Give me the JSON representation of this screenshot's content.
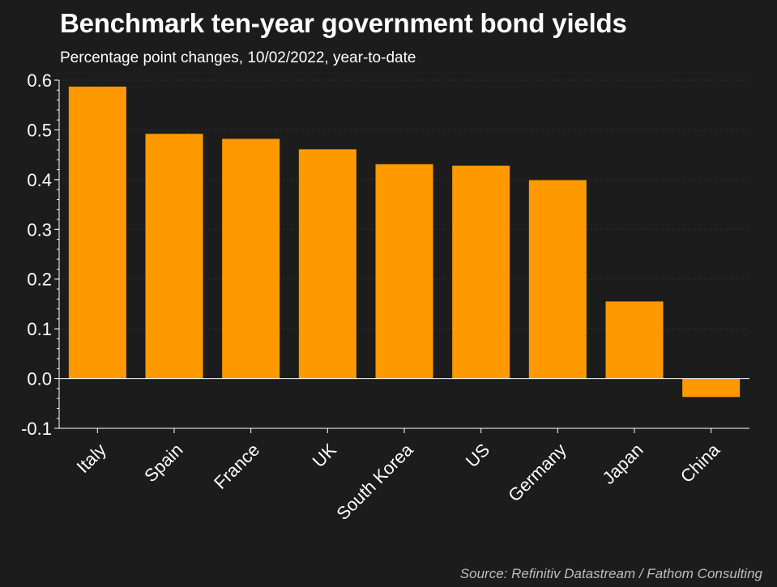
{
  "header": {
    "title": "Benchmark ten-year government bond yields",
    "subtitle": "Percentage point changes, 10/02/2022, year-to-date"
  },
  "footer": {
    "source": "Source: Refinitiv Datastream / Fathom Consulting"
  },
  "colors": {
    "background": "#1c1c1c",
    "bar": "#ff9900",
    "axis": "#ffffff",
    "grid": "#2e2e2e"
  },
  "chart_data": {
    "type": "bar",
    "title": "Benchmark ten-year government bond yields",
    "subtitle": "Percentage point changes, 10/02/2022, year-to-date",
    "categories": [
      "Italy",
      "Spain",
      "France",
      "UK",
      "South Korea",
      "US",
      "Germany",
      "Japan",
      "China"
    ],
    "values": [
      0.587,
      0.492,
      0.482,
      0.461,
      0.431,
      0.428,
      0.399,
      0.155,
      -0.037
    ],
    "ylim": [
      -0.1,
      0.6
    ],
    "yticks": [
      "0.6",
      "0.5",
      "0.4",
      "0.3",
      "0.2",
      "0.1",
      "0.0",
      "-0.1"
    ],
    "grid": true,
    "legend": "none"
  }
}
